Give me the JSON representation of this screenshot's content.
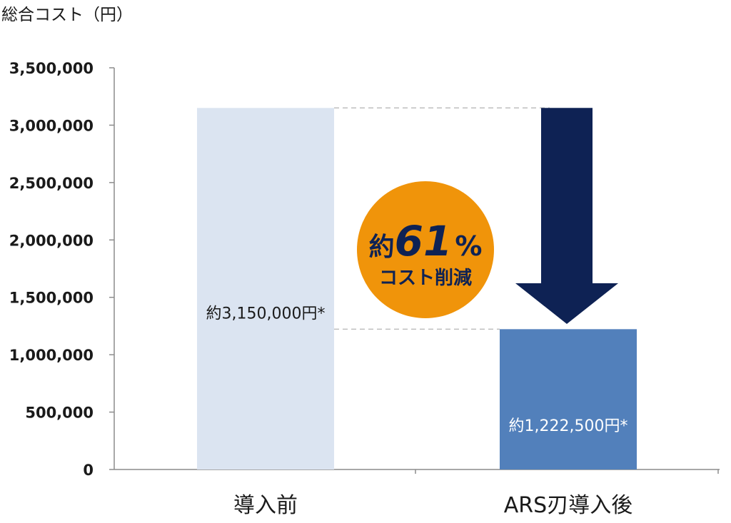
{
  "chart_data": {
    "type": "bar",
    "title": "",
    "ylabel": "総合コスト（円）",
    "xlabel": "",
    "categories": [
      "導入前",
      "ARS刃導入後"
    ],
    "values": [
      3150000,
      1222500
    ],
    "value_labels": [
      "約3,150,000円*",
      "約1,222,500円*"
    ],
    "ylim": [
      0,
      3500000
    ],
    "yticks": [
      0,
      500000,
      1000000,
      1500000,
      2000000,
      2500000,
      3000000,
      3500000
    ],
    "ytick_labels": [
      "0",
      "500,000",
      "1,000,000",
      "1,500,000",
      "2,000,000",
      "2,500,000",
      "3,000,000",
      "3,500,000"
    ],
    "grid": false,
    "legend": "none",
    "bar_colors": [
      "#dbe4f1",
      "#5280bb"
    ],
    "annotation": {
      "prefix": "約",
      "percent": "61",
      "percent_sign": "%",
      "subtext": "コスト削減",
      "badge_color": "#f0940a",
      "arrow_color": "#0e2254"
    }
  }
}
